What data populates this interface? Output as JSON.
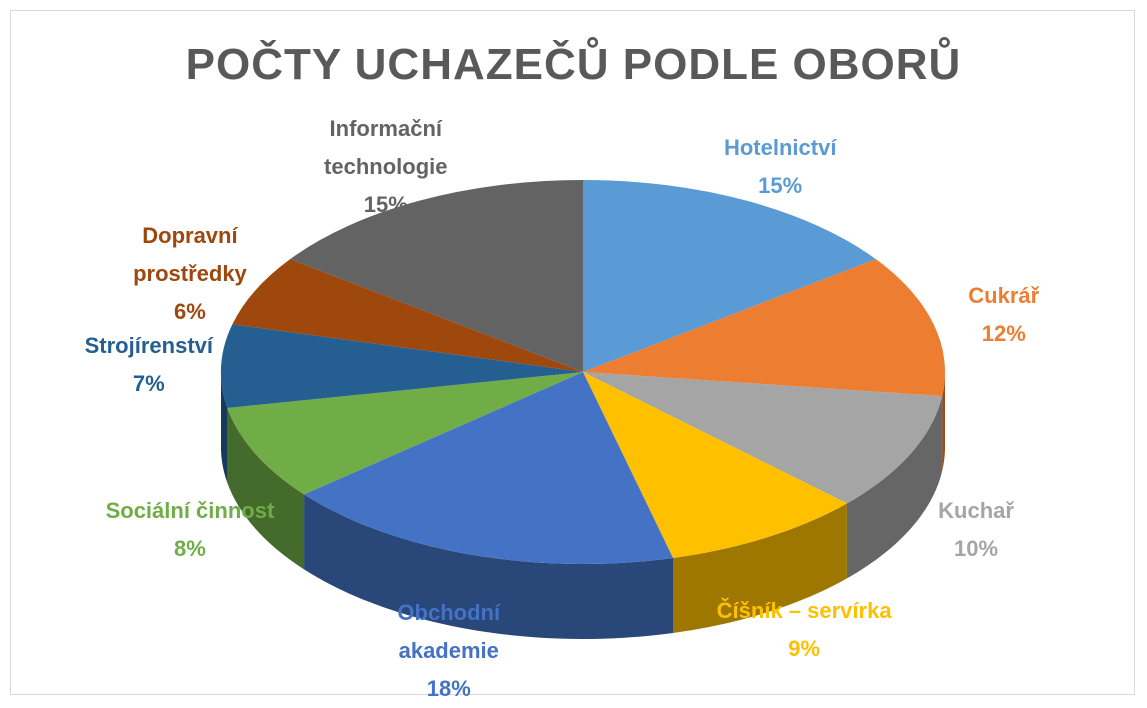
{
  "chart_data": {
    "type": "pie",
    "title": "POČTY UCHAZEČŮ PODLE OBORŮ",
    "categories": [
      "Hotelnictví",
      "Cukrář",
      "Kuchař",
      "Číšník – servírka",
      "Obchodní akademie",
      "Sociální činnost",
      "Strojírenství",
      "Dopravní prostředky",
      "Informační technologie"
    ],
    "values": [
      15,
      12,
      10,
      9,
      18,
      8,
      7,
      6,
      15
    ],
    "value_labels": [
      "15%",
      "12%",
      "10%",
      "9%",
      "18%",
      "8%",
      "7%",
      "6%",
      "15%"
    ],
    "colors": [
      "#5b9bd5",
      "#ed7d31",
      "#a5a5a5",
      "#ffc000",
      "#4472c4",
      "#70ad47",
      "#255e91",
      "#9e480e",
      "#636363"
    ]
  }
}
